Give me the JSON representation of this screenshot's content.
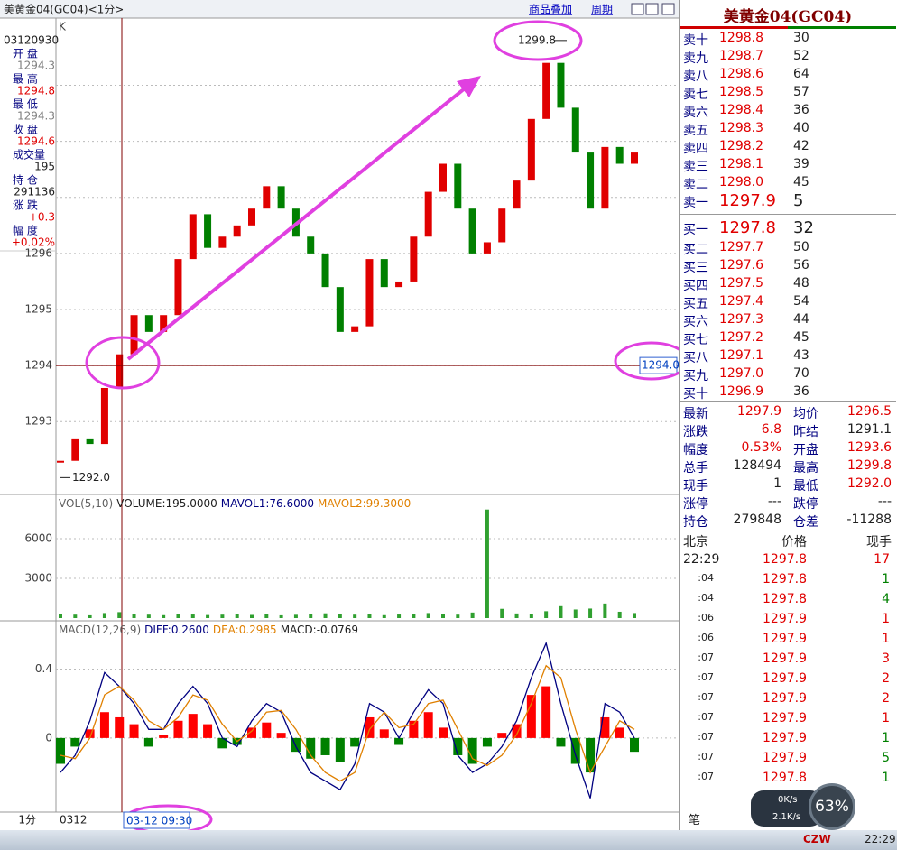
{
  "window": {
    "title": "美黄金04(GC04)<1分>",
    "links": [
      "商品叠加",
      "周期"
    ]
  },
  "info_panel": {
    "date": "03120930",
    "rows": [
      {
        "label": "开 盘",
        "value": "1294.3",
        "color": "#808080"
      },
      {
        "label": "最 高",
        "value": "1294.8",
        "color": "#e00000"
      },
      {
        "label": "最 低",
        "value": "1294.3",
        "color": "#808080"
      },
      {
        "label": "收 盘",
        "value": "1294.6",
        "color": "#e00000"
      },
      {
        "label": "成交量",
        "value": "195",
        "color": "#202020"
      },
      {
        "label": "持 仓",
        "value": "291136",
        "color": "#202020"
      },
      {
        "label": "涨 跌",
        "value": "+0.3",
        "color": "#e00000"
      },
      {
        "label": "幅 度",
        "value": "+0.02%",
        "color": "#e00000"
      }
    ]
  },
  "price_chart": {
    "type": "candlestick",
    "axis_label": "K",
    "ylim": [
      1291.7,
      1300.2
    ],
    "yticks": [
      1293,
      1294,
      1295,
      1296
    ],
    "grid_lines": [
      1297,
      1298,
      1299
    ],
    "up_color": "#e00000",
    "down_color": "#008000",
    "close": [
      1292.3,
      1292.7,
      1292.6,
      1293.6,
      1294.2,
      1294.9,
      1294.6,
      1294.9,
      1295.9,
      1296.7,
      1296.1,
      1296.3,
      1296.5,
      1296.8,
      1297.2,
      1296.8,
      1296.3,
      1296.0,
      1295.4,
      1294.6,
      1294.7,
      1295.9,
      1295.4,
      1295.5,
      1296.3,
      1297.1,
      1297.6,
      1296.8,
      1296.0,
      1296.2,
      1296.8,
      1297.3,
      1298.4,
      1299.4,
      1298.6,
      1297.8,
      1296.8,
      1297.9,
      1297.6,
      1297.8
    ],
    "high": 1299.8,
    "low": {
      "value": 1292.0,
      "label": "1292.0"
    },
    "crosshair": {
      "value": 1294.0,
      "label": "1294.0"
    }
  },
  "volume_chart": {
    "type": "bar",
    "legend": [
      {
        "text": "VOL(5,10)",
        "color": "#606060"
      },
      {
        "text": "VOLUME:195.0000",
        "color": "#202020"
      },
      {
        "text": "MAVOL1:76.6000",
        "color": "#000080"
      },
      {
        "text": "MAVOL2:99.3000",
        "color": "#e08000"
      }
    ],
    "ylim": [
      0,
      9340
    ],
    "yticks": [
      3000,
      6000
    ],
    "color": "#30a030",
    "values": [
      320,
      260,
      210,
      380,
      450,
      300,
      260,
      220,
      310,
      270,
      230,
      260,
      310,
      240,
      300,
      210,
      250,
      320,
      360,
      300,
      260,
      310,
      220,
      270,
      330,
      380,
      310,
      260,
      420,
      8200,
      700,
      350,
      300,
      520,
      900,
      650,
      720,
      1100,
      480,
      380
    ]
  },
  "macd_chart": {
    "type": "macd",
    "legend": [
      {
        "text": "MACD(12,26,9)",
        "color": "#606060"
      },
      {
        "text": "DIFF:0.2600",
        "color": "#000080"
      },
      {
        "text": "DEA:0.2985",
        "color": "#e08000"
      },
      {
        "text": "MACD:-0.0769",
        "color": "#202020"
      }
    ],
    "ylim": [
      -0.43,
      0.68
    ],
    "yticks": [
      0,
      0.4
    ],
    "up_color": "#ff0000",
    "down_color": "#008000",
    "histogram": [
      -0.15,
      -0.05,
      0.05,
      0.15,
      0.12,
      0.08,
      -0.05,
      0.02,
      0.1,
      0.14,
      0.08,
      -0.06,
      -0.04,
      0.06,
      0.09,
      0.03,
      -0.08,
      -0.12,
      -0.1,
      -0.14,
      -0.05,
      0.12,
      0.05,
      -0.04,
      0.1,
      0.15,
      0.06,
      -0.1,
      -0.15,
      -0.05,
      0.03,
      0.08,
      0.25,
      0.3,
      -0.05,
      -0.15,
      -0.2,
      0.12,
      0.06,
      -0.08
    ],
    "diff": [
      -0.2,
      -0.1,
      0.1,
      0.38,
      0.3,
      0.2,
      0.05,
      0.05,
      0.2,
      0.3,
      0.2,
      0.0,
      -0.05,
      0.1,
      0.2,
      0.15,
      -0.05,
      -0.2,
      -0.25,
      -0.3,
      -0.15,
      0.2,
      0.15,
      0.0,
      0.15,
      0.28,
      0.2,
      -0.1,
      -0.2,
      -0.15,
      -0.05,
      0.1,
      0.35,
      0.55,
      0.2,
      -0.1,
      -0.35,
      0.2,
      0.15,
      0.0
    ],
    "dea": [
      -0.1,
      -0.12,
      0.0,
      0.25,
      0.3,
      0.22,
      0.1,
      0.05,
      0.12,
      0.25,
      0.22,
      0.08,
      -0.02,
      0.04,
      0.15,
      0.16,
      0.05,
      -0.1,
      -0.2,
      -0.25,
      -0.2,
      0.05,
      0.15,
      0.06,
      0.08,
      0.2,
      0.22,
      0.05,
      -0.12,
      -0.16,
      -0.1,
      0.02,
      0.2,
      0.42,
      0.35,
      0.05,
      -0.2,
      -0.05,
      0.1,
      0.05
    ],
    "diff_color": "#000080",
    "dea_color": "#e08000"
  },
  "x_axis": {
    "period": "1分",
    "date": "0312",
    "cursor": "03-12 09:30"
  },
  "order_book": {
    "title": "美黄金04(GC04)",
    "asks": [
      {
        "label": "卖十",
        "price": "1298.8",
        "volume": "30"
      },
      {
        "label": "卖九",
        "price": "1298.7",
        "volume": "52"
      },
      {
        "label": "卖八",
        "price": "1298.6",
        "volume": "64"
      },
      {
        "label": "卖七",
        "price": "1298.5",
        "volume": "57"
      },
      {
        "label": "卖六",
        "price": "1298.4",
        "volume": "36"
      },
      {
        "label": "卖五",
        "price": "1298.3",
        "volume": "40"
      },
      {
        "label": "卖四",
        "price": "1298.2",
        "volume": "42"
      },
      {
        "label": "卖三",
        "price": "1298.1",
        "volume": "39"
      },
      {
        "label": "卖二",
        "price": "1298.0",
        "volume": "45"
      },
      {
        "label": "卖一",
        "price": "1297.9",
        "volume": "5"
      }
    ],
    "bids": [
      {
        "label": "买一",
        "price": "1297.8",
        "volume": "32"
      },
      {
        "label": "买二",
        "price": "1297.7",
        "volume": "50"
      },
      {
        "label": "买三",
        "price": "1297.6",
        "volume": "56"
      },
      {
        "label": "买四",
        "price": "1297.5",
        "volume": "48"
      },
      {
        "label": "买五",
        "price": "1297.4",
        "volume": "54"
      },
      {
        "label": "买六",
        "price": "1297.3",
        "volume": "44"
      },
      {
        "label": "买七",
        "price": "1297.2",
        "volume": "45"
      },
      {
        "label": "买八",
        "price": "1297.1",
        "volume": "43"
      },
      {
        "label": "买九",
        "price": "1297.0",
        "volume": "70"
      },
      {
        "label": "买十",
        "price": "1296.9",
        "volume": "36"
      }
    ]
  },
  "stats": [
    [
      {
        "label": "最新",
        "value": "1297.9",
        "color": "#e00000"
      },
      {
        "label": "均价",
        "value": "1296.5",
        "color": "#e00000"
      }
    ],
    [
      {
        "label": "涨跌",
        "value": "6.8",
        "color": "#e00000"
      },
      {
        "label": "昨结",
        "value": "1291.1",
        "color": "#202020"
      }
    ],
    [
      {
        "label": "幅度",
        "value": "0.53%",
        "color": "#e00000"
      },
      {
        "label": "开盘",
        "value": "1293.6",
        "color": "#e00000"
      }
    ],
    [
      {
        "label": "总手",
        "value": "128494",
        "color": "#202020"
      },
      {
        "label": "最高",
        "value": "1299.8",
        "color": "#e00000"
      }
    ],
    [
      {
        "label": "现手",
        "value": "1",
        "color": "#202020"
      },
      {
        "label": "最低",
        "value": "1292.0",
        "color": "#e00000"
      }
    ],
    [
      {
        "label": "涨停",
        "value": "---",
        "color": "#202020"
      },
      {
        "label": "跌停",
        "value": "---",
        "color": "#202020"
      }
    ],
    [
      {
        "label": "持仓",
        "value": "279848",
        "color": "#202020"
      },
      {
        "label": "仓差",
        "value": "-11288",
        "color": "#202020"
      }
    ]
  ],
  "trades": {
    "header": [
      "北京",
      "价格",
      "现手"
    ],
    "rows": [
      {
        "time": "22:29",
        "price": "1297.8",
        "volume": "17",
        "color": "#e00000"
      },
      {
        "time": ":04",
        "price": "1297.8",
        "volume": "1",
        "color": "#008000"
      },
      {
        "time": ":04",
        "price": "1297.8",
        "volume": "4",
        "color": "#008000"
      },
      {
        "time": ":06",
        "price": "1297.9",
        "volume": "1",
        "color": "#e00000"
      },
      {
        "time": ":06",
        "price": "1297.9",
        "volume": "1",
        "color": "#e00000"
      },
      {
        "time": ":07",
        "price": "1297.9",
        "volume": "3",
        "color": "#e00000"
      },
      {
        "time": ":07",
        "price": "1297.9",
        "volume": "2",
        "color": "#e00000"
      },
      {
        "time": ":07",
        "price": "1297.9",
        "volume": "2",
        "color": "#e00000"
      },
      {
        "time": ":07",
        "price": "1297.9",
        "volume": "1",
        "color": "#e00000"
      },
      {
        "time": ":07",
        "price": "1297.9",
        "volume": "1",
        "color": "#008000"
      },
      {
        "time": ":07",
        "price": "1297.9",
        "volume": "5",
        "color": "#008000"
      },
      {
        "time": ":07",
        "price": "1297.8",
        "volume": "1",
        "color": "#008000"
      }
    ],
    "footer": "笔"
  },
  "system": {
    "battery": "63%",
    "upload": "0K/s",
    "download": "2.1K/s",
    "clock": "22:29",
    "tray": "CZW"
  }
}
